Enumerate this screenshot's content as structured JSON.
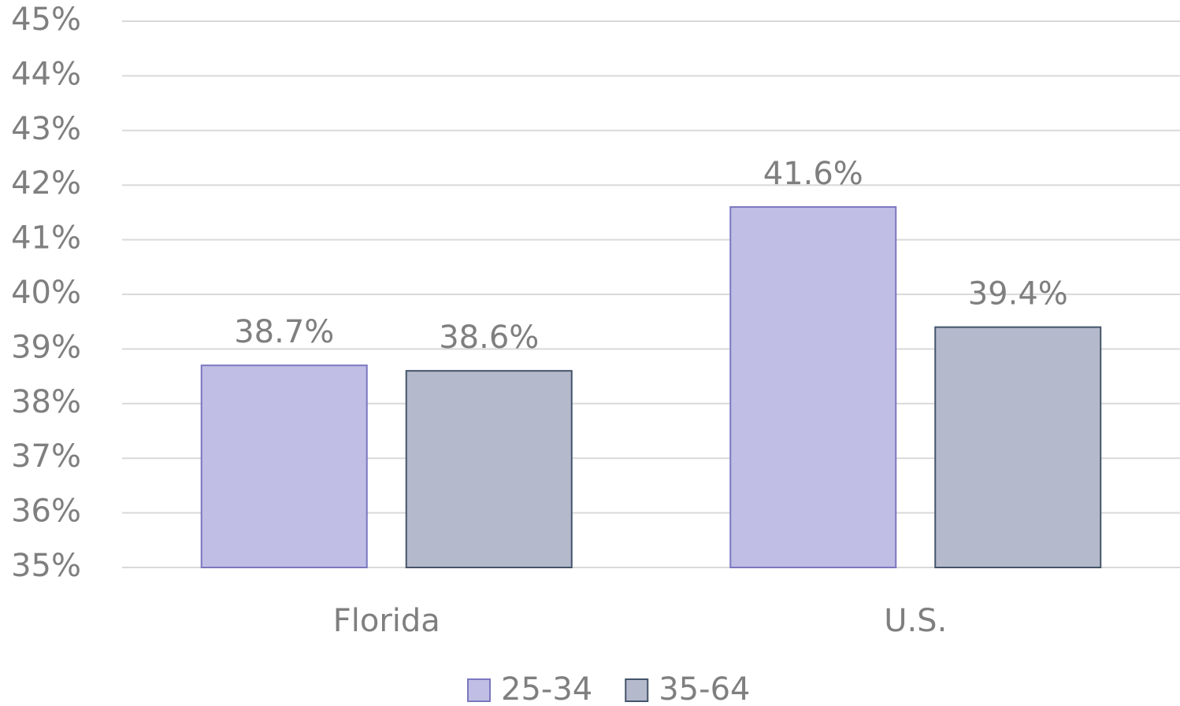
{
  "chart_data": {
    "type": "bar",
    "categories": [
      "Florida",
      "U.S."
    ],
    "series": [
      {
        "name": "25-34",
        "color": "#c0bee4",
        "edgecolor": "#7b78c0",
        "values": [
          38.7,
          41.6
        ],
        "value_labels": [
          "38.7%",
          "41.6%"
        ]
      },
      {
        "name": "35-64",
        "color": "#b4b9cb",
        "edgecolor": "#44546a",
        "values": [
          38.6,
          39.4
        ],
        "value_labels": [
          "38.6%",
          "39.4%"
        ]
      }
    ],
    "ylim": [
      35,
      45
    ],
    "yticks": [
      {
        "value": 35,
        "label": "35%"
      },
      {
        "value": 36,
        "label": "36%"
      },
      {
        "value": 37,
        "label": "37%"
      },
      {
        "value": 38,
        "label": "38%"
      },
      {
        "value": 39,
        "label": "39%"
      },
      {
        "value": 40,
        "label": "40%"
      },
      {
        "value": 41,
        "label": "41%"
      },
      {
        "value": 42,
        "label": "42%"
      },
      {
        "value": 43,
        "label": "43%"
      },
      {
        "value": 44,
        "label": "44%"
      },
      {
        "value": 45,
        "label": "45%"
      }
    ],
    "grid": true,
    "legend": "bottom"
  }
}
